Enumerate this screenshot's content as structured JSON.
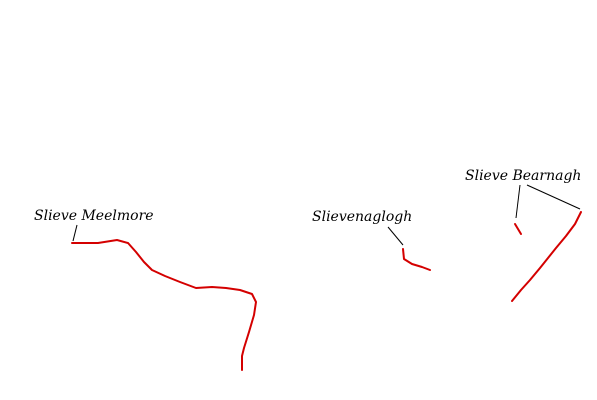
{
  "map": {
    "colors": {
      "background": "#ffffff",
      "trace": "#d40000",
      "label": "#000000"
    },
    "peaks": [
      {
        "id": "meelmore",
        "name": "Slieve Meelmore"
      },
      {
        "id": "slievenaglogh",
        "name": "Slievenaglogh"
      },
      {
        "id": "bearnagh",
        "name": "Slieve Bearnagh"
      }
    ]
  }
}
